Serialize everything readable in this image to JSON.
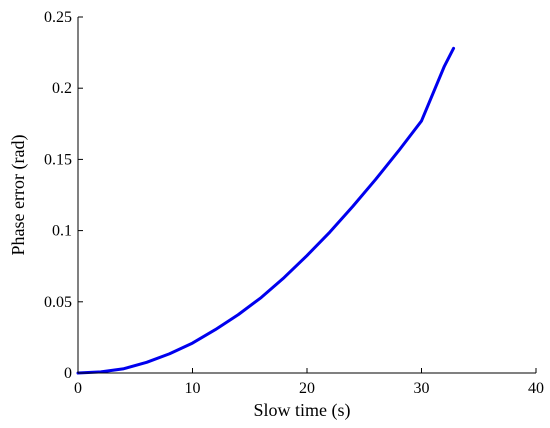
{
  "chart_data": {
    "type": "line",
    "title": "",
    "xlabel": "Slow time (s)",
    "ylabel": "Phase error (rad)",
    "xlim": [
      0,
      40
    ],
    "ylim": [
      0,
      0.25
    ],
    "xticks": [
      0,
      10,
      20,
      30,
      40
    ],
    "xtick_labels": [
      "0",
      "10",
      "20",
      "30",
      "40"
    ],
    "yticks": [
      0,
      0.05,
      0.1,
      0.15,
      0.2,
      0.25
    ],
    "ytick_labels": [
      "0",
      "0.05",
      "0.1",
      "0.15",
      "0.2",
      "0.25"
    ],
    "grid": false,
    "series": [
      {
        "color": "#0000ee",
        "x": [
          0,
          2,
          4,
          6,
          8,
          10,
          12,
          14,
          16,
          18,
          20,
          22,
          24,
          26,
          28,
          30,
          32,
          32.8
        ],
        "y": [
          0,
          0.0008,
          0.003,
          0.0075,
          0.0135,
          0.021,
          0.0305,
          0.041,
          0.053,
          0.067,
          0.0825,
          0.099,
          0.117,
          0.136,
          0.156,
          0.177,
          0.2155,
          0.228
        ]
      }
    ]
  }
}
